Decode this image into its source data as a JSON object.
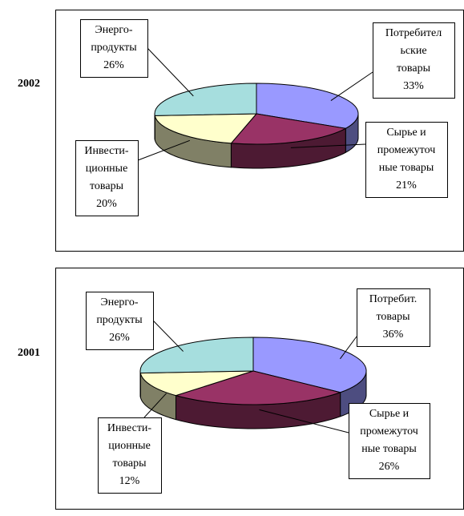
{
  "chart_data": [
    {
      "type": "pie3d",
      "title": "2002",
      "categories": [
        [
          "Потребител",
          "ьские",
          "товары"
        ],
        [
          "Сырье и",
          "промежуточ",
          "ные товары"
        ],
        [
          "Инвести-",
          "ционные",
          "товары"
        ],
        [
          "Энерго-",
          "продукты"
        ]
      ],
      "values": [
        33,
        21,
        20,
        26
      ],
      "value_labels": [
        "33%",
        "21%",
        "20%",
        "26%"
      ],
      "colors": [
        "#9999ff",
        "#993366",
        "#ffffcc",
        "#a6dede"
      ]
    },
    {
      "type": "pie3d",
      "title": "2001",
      "categories": [
        [
          "Потребит.",
          "товары"
        ],
        [
          "Сырье и",
          "промежуточ",
          "ные товары"
        ],
        [
          "Инвести-",
          "ционные",
          "товары"
        ],
        [
          "Энерго-",
          "продукты"
        ]
      ],
      "values": [
        36,
        26,
        12,
        26
      ],
      "value_labels": [
        "36%",
        "26%",
        "12%",
        "26%"
      ],
      "colors": [
        "#9999ff",
        "#993366",
        "#ffffcc",
        "#a6dede"
      ]
    }
  ]
}
